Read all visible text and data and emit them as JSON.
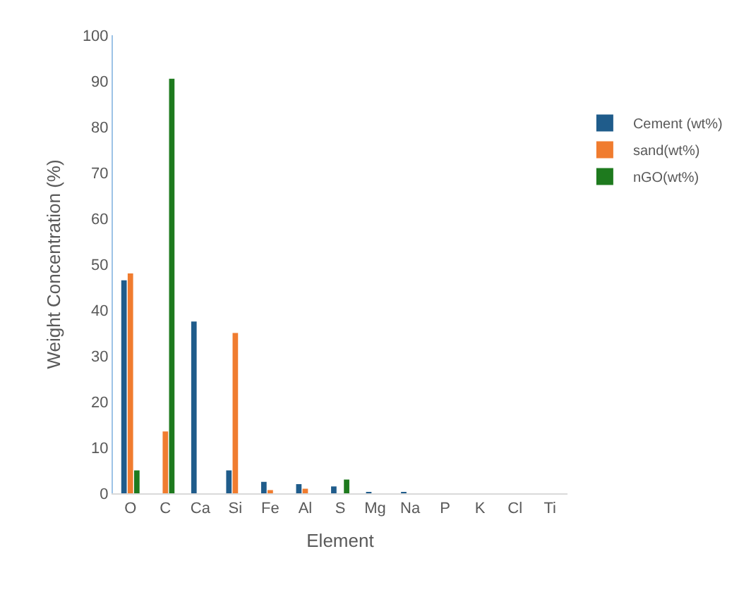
{
  "chart_data": {
    "type": "bar",
    "xlabel": "Element",
    "ylabel": "Weight Concentration (%)",
    "categories": [
      "O",
      "C",
      "Ca",
      "Si",
      "Fe",
      "Al",
      "S",
      "Mg",
      "Na",
      "P",
      "K",
      "Cl",
      "Ti"
    ],
    "series": [
      {
        "name": "Cement (wt%)",
        "color": "#1f5c8b",
        "values": [
          46.5,
          0,
          37.5,
          5,
          2.5,
          2,
          1.5,
          0.3,
          0.3,
          0,
          0,
          0,
          0
        ]
      },
      {
        "name": "sand(wt%)",
        "color": "#f07c2f",
        "values": [
          48,
          13.5,
          0,
          35,
          0.7,
          1,
          0,
          0,
          0,
          0,
          0,
          0,
          0
        ]
      },
      {
        "name": "nGO(wt%)",
        "color": "#1e7a1e",
        "values": [
          5,
          90.5,
          0,
          0,
          0,
          0,
          3,
          0,
          0,
          0,
          0,
          0,
          0
        ]
      }
    ],
    "ylim": [
      0,
      100
    ],
    "yticks": [
      0,
      10,
      20,
      30,
      40,
      50,
      60,
      70,
      80,
      90,
      100
    ],
    "legend": "right"
  }
}
